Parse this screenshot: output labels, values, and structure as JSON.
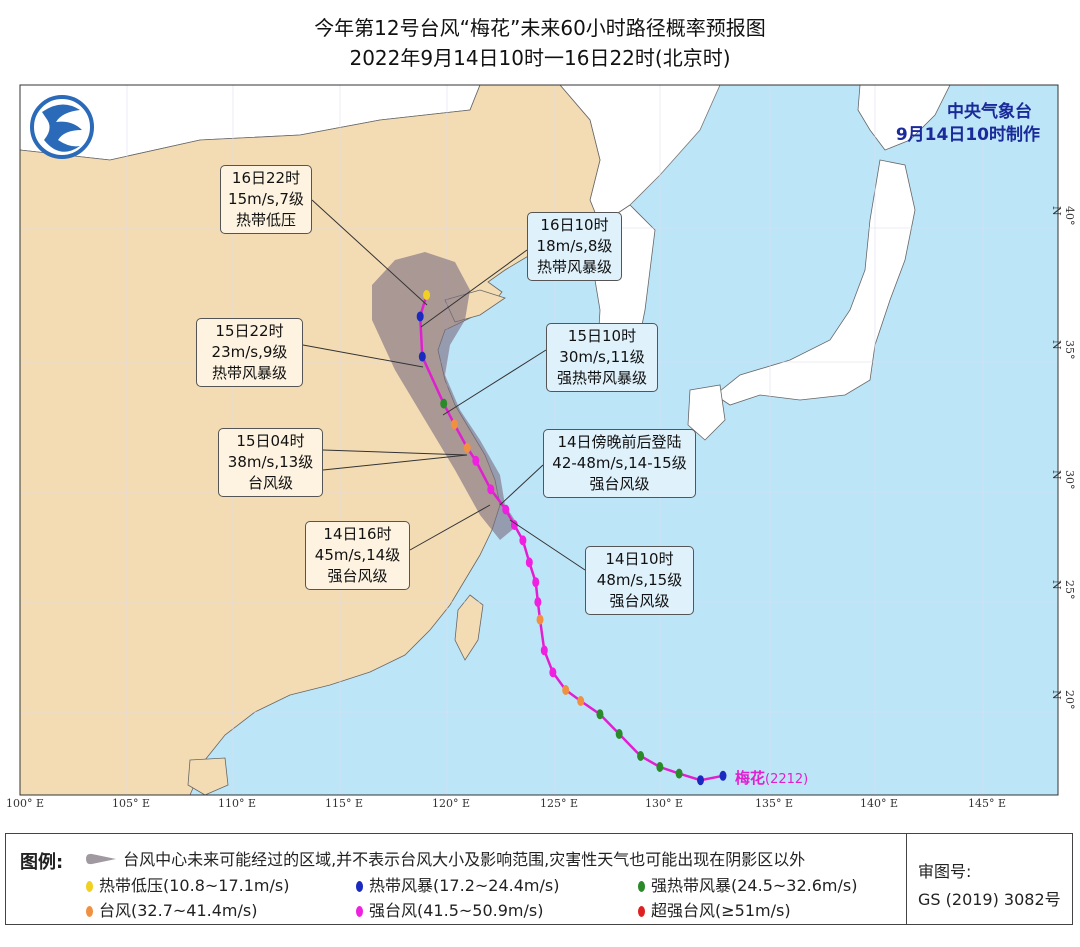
{
  "title": {
    "line1": "今年第12号台风“梅花”未来60小时路径概率预报图",
    "line2": "2022年9月14日10时一16日22时(北京时)"
  },
  "agency": {
    "name": "中央气象台",
    "issued": "9月14日10时制作"
  },
  "logo": {
    "icon": "cma-logo-icon"
  },
  "typhoon": {
    "name": "梅花",
    "code": "(2212)"
  },
  "colors": {
    "land": "#f3dcb4",
    "sea": "#bde5f8",
    "foreign_land": "#ffffff",
    "cone": "#8a7a8a",
    "track_line": "#e020d0",
    "热带低压": "#f0d020",
    "热带风暴": "#1a2ac0",
    "强热带风暴": "#2a8a2a",
    "台风": "#f09040",
    "强台风": "#f020e0",
    "超强台风": "#e02020"
  },
  "axes": {
    "lon_ticks": [
      "100° E",
      "105° E",
      "110° E",
      "115° E",
      "120° E",
      "125° E",
      "130° E",
      "135° E",
      "140° E",
      "145° E"
    ],
    "lat_ticks": [
      "20° N",
      "25° N",
      "30° N",
      "35° N",
      "40° N"
    ]
  },
  "track": {
    "past": [
      {
        "lon": 132.85,
        "lat": 17.1,
        "cat": "热带风暴"
      },
      {
        "lon": 131.8,
        "lat": 16.9,
        "cat": "热带风暴"
      },
      {
        "lon": 130.8,
        "lat": 17.2,
        "cat": "强热带风暴"
      },
      {
        "lon": 129.9,
        "lat": 17.5,
        "cat": "强热带风暴"
      },
      {
        "lon": 129.0,
        "lat": 18.0,
        "cat": "强热带风暴"
      },
      {
        "lon": 128.0,
        "lat": 19.0,
        "cat": "强热带风暴"
      },
      {
        "lon": 127.1,
        "lat": 19.9,
        "cat": "强热带风暴"
      },
      {
        "lon": 126.2,
        "lat": 20.5,
        "cat": "台风"
      },
      {
        "lon": 125.5,
        "lat": 21.0,
        "cat": "台风"
      },
      {
        "lon": 124.9,
        "lat": 21.8,
        "cat": "强台风"
      },
      {
        "lon": 124.5,
        "lat": 22.8,
        "cat": "强台风"
      },
      {
        "lon": 124.3,
        "lat": 24.2,
        "cat": "台风"
      },
      {
        "lon": 124.2,
        "lat": 25.0,
        "cat": "强台风"
      },
      {
        "lon": 124.1,
        "lat": 25.9,
        "cat": "强台风"
      },
      {
        "lon": 123.8,
        "lat": 26.8,
        "cat": "强台风"
      },
      {
        "lon": 123.5,
        "lat": 27.8,
        "cat": "强台风"
      },
      {
        "lon": 123.1,
        "lat": 28.5,
        "cat": "强台风"
      },
      {
        "lon": 122.7,
        "lat": 29.2,
        "cat": "强台风"
      }
    ],
    "forecast": [
      {
        "lon": 122.0,
        "lat": 30.1,
        "cat": "强台风"
      },
      {
        "lon": 121.3,
        "lat": 31.2,
        "cat": "强台风"
      },
      {
        "lon": 120.9,
        "lat": 31.7,
        "cat": "台风"
      },
      {
        "lon": 120.3,
        "lat": 32.6,
        "cat": "台风"
      },
      {
        "lon": 119.8,
        "lat": 33.4,
        "cat": "强热带风暴"
      },
      {
        "lon": 118.8,
        "lat": 35.2,
        "cat": "热带风暴"
      },
      {
        "lon": 118.7,
        "lat": 36.7,
        "cat": "热带风暴"
      },
      {
        "lon": 119.0,
        "lat": 37.5,
        "cat": "热带低压"
      }
    ]
  },
  "callouts": [
    {
      "time": "16日22时",
      "wind": "15m/s,7级",
      "level": "热带低压"
    },
    {
      "time": "16日10时",
      "wind": "18m/s,8级",
      "level": "热带风暴级"
    },
    {
      "time": "15日22时",
      "wind": "23m/s,9级",
      "level": "热带风暴级"
    },
    {
      "time": "15日10时",
      "wind": "30m/s,11级",
      "level": "强热带风暴级"
    },
    {
      "time": "15日04时",
      "wind": "38m/s,13级",
      "level": "台风级"
    },
    {
      "time": "14日傍晚前后登陆",
      "wind": "42-48m/s,14-15级",
      "level": "强台风级"
    },
    {
      "time": "14日16时",
      "wind": "45m/s,14级",
      "level": "强台风级"
    },
    {
      "time": "14日10时",
      "wind": "48m/s,15级",
      "level": "强台风级"
    }
  ],
  "legend": {
    "title": "图例:",
    "cone": "台风中心未来可能经过的区域,并不表示台风大小及影响范围,灾害性天气也可能出现在阴影区以外",
    "items": [
      {
        "label": "热带低压(10.8~17.1m/s)",
        "color": "#f0d020"
      },
      {
        "label": "热带风暴(17.2~24.4m/s)",
        "color": "#1a2ac0"
      },
      {
        "label": "强热带风暴(24.5~32.6m/s)",
        "color": "#2a8a2a"
      },
      {
        "label": "台风(32.7~41.4m/s)",
        "color": "#f09040"
      },
      {
        "label": "强台风(41.5~50.9m/s)",
        "color": "#f020e0"
      },
      {
        "label": "超强台风(≥51m/s)",
        "color": "#e02020"
      }
    ],
    "approval_label": "审图号:",
    "approval_number": "GS (2019) 3082号"
  }
}
